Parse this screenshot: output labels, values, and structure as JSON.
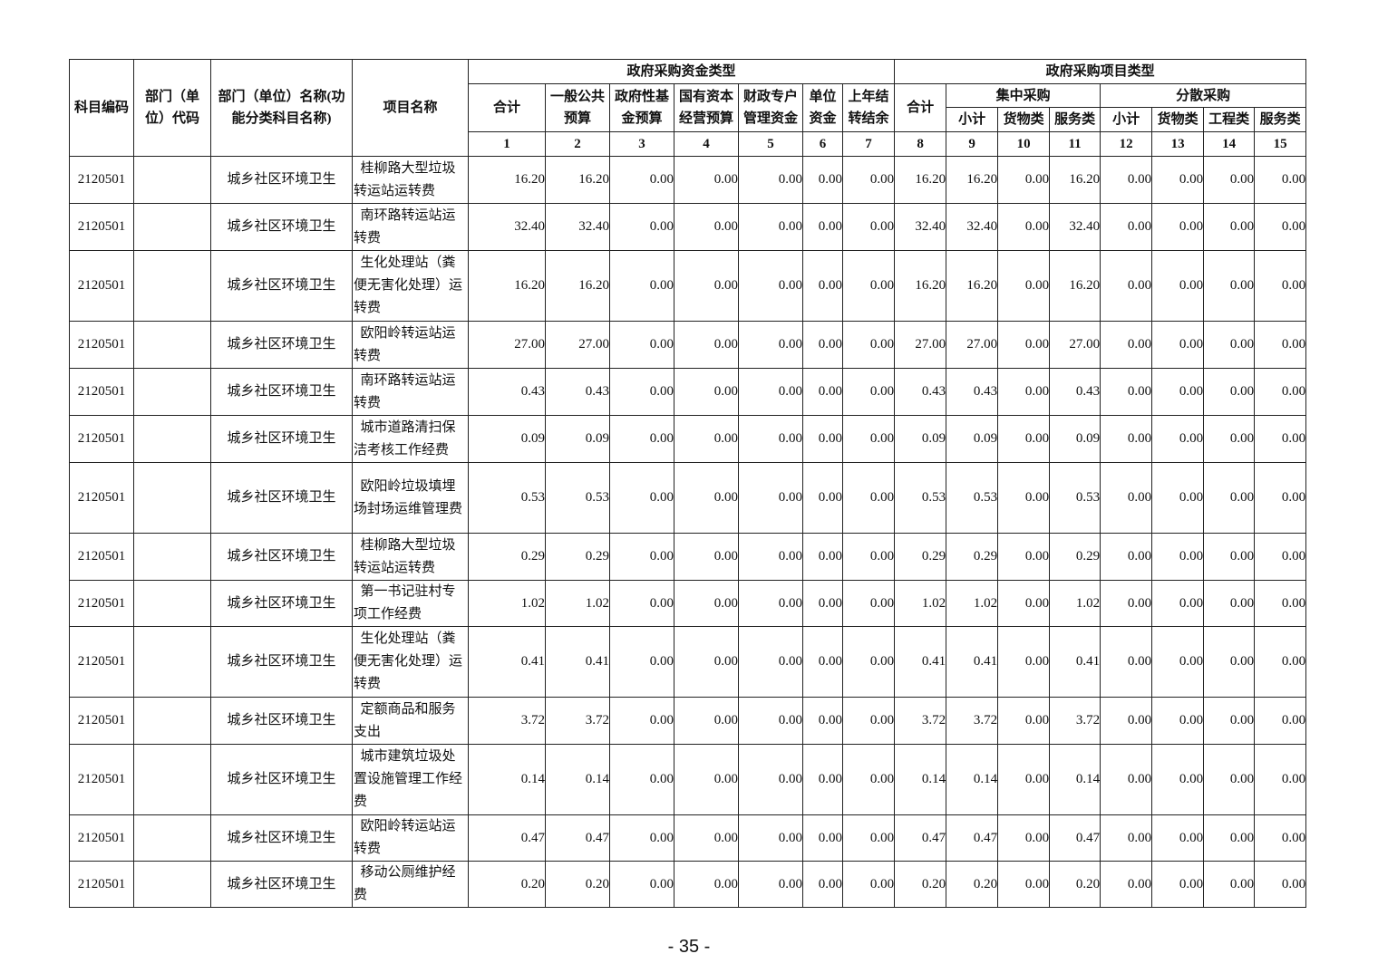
{
  "header": {
    "code": "科目编码",
    "dept_code": "部门（单位）代码",
    "dept_name": "部门（单位）名称(功能分类科目名称)",
    "project": "项目名称",
    "fund_group": "政府采购资金类型",
    "item_group": "政府采购项目类型",
    "fund_cols": [
      "合计",
      "一般公共预算",
      "政府性基金预算",
      "国有资本经营预算",
      "财政专户管理资金",
      "单位资金",
      "上年结转结余"
    ],
    "item_total": "合计",
    "central": "集中采购",
    "dispersed": "分散采购",
    "central_cols": [
      "小计",
      "货物类",
      "服务类"
    ],
    "dispersed_cols": [
      "小计",
      "货物类",
      "工程类",
      "服务类"
    ],
    "numbers": [
      "1",
      "2",
      "3",
      "4",
      "5",
      "6",
      "7",
      "8",
      "9",
      "10",
      "11",
      "12",
      "13",
      "14",
      "15"
    ]
  },
  "rows": [
    {
      "code": "2120501",
      "dept_code": "",
      "name": "城乡社区环境卫生",
      "project": "桂柳路大型垃圾转运站运转费",
      "values": [
        "16.20",
        "16.20",
        "0.00",
        "0.00",
        "0.00",
        "0.00",
        "0.00",
        "16.20",
        "16.20",
        "0.00",
        "16.20",
        "0.00",
        "0.00",
        "0.00",
        "0.00"
      ]
    },
    {
      "code": "2120501",
      "dept_code": "",
      "name": "城乡社区环境卫生",
      "project": "南环路转运站运转费",
      "values": [
        "32.40",
        "32.40",
        "0.00",
        "0.00",
        "0.00",
        "0.00",
        "0.00",
        "32.40",
        "32.40",
        "0.00",
        "32.40",
        "0.00",
        "0.00",
        "0.00",
        "0.00"
      ]
    },
    {
      "code": "2120501",
      "dept_code": "",
      "name": "城乡社区环境卫生",
      "project": "生化处理站（粪便无害化处理）运转费",
      "values": [
        "16.20",
        "16.20",
        "0.00",
        "0.00",
        "0.00",
        "0.00",
        "0.00",
        "16.20",
        "16.20",
        "0.00",
        "16.20",
        "0.00",
        "0.00",
        "0.00",
        "0.00"
      ]
    },
    {
      "code": "2120501",
      "dept_code": "",
      "name": "城乡社区环境卫生",
      "project": "欧阳岭转运站运转费",
      "values": [
        "27.00",
        "27.00",
        "0.00",
        "0.00",
        "0.00",
        "0.00",
        "0.00",
        "27.00",
        "27.00",
        "0.00",
        "27.00",
        "0.00",
        "0.00",
        "0.00",
        "0.00"
      ]
    },
    {
      "code": "2120501",
      "dept_code": "",
      "name": "城乡社区环境卫生",
      "project": "南环路转运站运转费",
      "values": [
        "0.43",
        "0.43",
        "0.00",
        "0.00",
        "0.00",
        "0.00",
        "0.00",
        "0.43",
        "0.43",
        "0.00",
        "0.43",
        "0.00",
        "0.00",
        "0.00",
        "0.00"
      ]
    },
    {
      "code": "2120501",
      "dept_code": "",
      "name": "城乡社区环境卫生",
      "project": "城市道路清扫保洁考核工作经费",
      "values": [
        "0.09",
        "0.09",
        "0.00",
        "0.00",
        "0.00",
        "0.00",
        "0.00",
        "0.09",
        "0.09",
        "0.00",
        "0.09",
        "0.00",
        "0.00",
        "0.00",
        "0.00"
      ]
    },
    {
      "code": "2120501",
      "dept_code": "",
      "name": "城乡社区环境卫生",
      "project": "欧阳岭垃圾填埋场封场运维管理费",
      "values": [
        "0.53",
        "0.53",
        "0.00",
        "0.00",
        "0.00",
        "0.00",
        "0.00",
        "0.53",
        "0.53",
        "0.00",
        "0.53",
        "0.00",
        "0.00",
        "0.00",
        "0.00"
      ]
    },
    {
      "code": "2120501",
      "dept_code": "",
      "name": "城乡社区环境卫生",
      "project": "桂柳路大型垃圾转运站运转费",
      "values": [
        "0.29",
        "0.29",
        "0.00",
        "0.00",
        "0.00",
        "0.00",
        "0.00",
        "0.29",
        "0.29",
        "0.00",
        "0.29",
        "0.00",
        "0.00",
        "0.00",
        "0.00"
      ]
    },
    {
      "code": "2120501",
      "dept_code": "",
      "name": "城乡社区环境卫生",
      "project": "第一书记驻村专项工作经费",
      "values": [
        "1.02",
        "1.02",
        "0.00",
        "0.00",
        "0.00",
        "0.00",
        "0.00",
        "1.02",
        "1.02",
        "0.00",
        "1.02",
        "0.00",
        "0.00",
        "0.00",
        "0.00"
      ]
    },
    {
      "code": "2120501",
      "dept_code": "",
      "name": "城乡社区环境卫生",
      "project": "生化处理站（粪便无害化处理）运转费",
      "values": [
        "0.41",
        "0.41",
        "0.00",
        "0.00",
        "0.00",
        "0.00",
        "0.00",
        "0.41",
        "0.41",
        "0.00",
        "0.41",
        "0.00",
        "0.00",
        "0.00",
        "0.00"
      ]
    },
    {
      "code": "2120501",
      "dept_code": "",
      "name": "城乡社区环境卫生",
      "project": "定额商品和服务支出",
      "values": [
        "3.72",
        "3.72",
        "0.00",
        "0.00",
        "0.00",
        "0.00",
        "0.00",
        "3.72",
        "3.72",
        "0.00",
        "3.72",
        "0.00",
        "0.00",
        "0.00",
        "0.00"
      ]
    },
    {
      "code": "2120501",
      "dept_code": "",
      "name": "城乡社区环境卫生",
      "project": "城市建筑垃圾处置设施管理工作经费",
      "values": [
        "0.14",
        "0.14",
        "0.00",
        "0.00",
        "0.00",
        "0.00",
        "0.00",
        "0.14",
        "0.14",
        "0.00",
        "0.14",
        "0.00",
        "0.00",
        "0.00",
        "0.00"
      ]
    },
    {
      "code": "2120501",
      "dept_code": "",
      "name": "城乡社区环境卫生",
      "project": "欧阳岭转运站运转费",
      "values": [
        "0.47",
        "0.47",
        "0.00",
        "0.00",
        "0.00",
        "0.00",
        "0.00",
        "0.47",
        "0.47",
        "0.00",
        "0.47",
        "0.00",
        "0.00",
        "0.00",
        "0.00"
      ]
    },
    {
      "code": "2120501",
      "dept_code": "",
      "name": "城乡社区环境卫生",
      "project": "移动公厕维护经费",
      "values": [
        "0.20",
        "0.20",
        "0.00",
        "0.00",
        "0.00",
        "0.00",
        "0.00",
        "0.20",
        "0.20",
        "0.00",
        "0.20",
        "0.00",
        "0.00",
        "0.00",
        "0.00"
      ]
    }
  ],
  "page_number": "- 35 -"
}
